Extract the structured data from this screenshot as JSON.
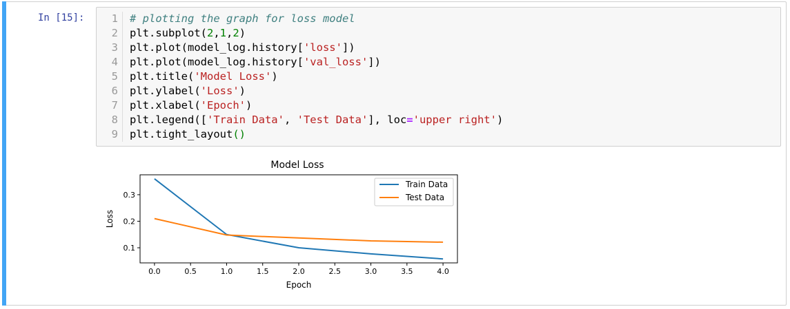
{
  "cell": {
    "prompt": "In [15]:"
  },
  "code": {
    "line_numbers": [
      "1",
      "2",
      "3",
      "4",
      "5",
      "6",
      "7",
      "8",
      "9"
    ]
  },
  "colors": {
    "prompt": "#303f9f",
    "cell_selected_bar": "#42a5f5",
    "comment": "#408080",
    "string": "#ba2121",
    "number": "#008000",
    "operator": "#aa22ff"
  },
  "chart_data": {
    "type": "line",
    "title": "Model Loss",
    "xlabel": "Epoch",
    "ylabel": "Loss",
    "x": [
      0,
      1,
      2,
      3,
      4
    ],
    "series": [
      {
        "name": "Train Data",
        "color": "#1f77b4",
        "values": [
          0.36,
          0.15,
          0.1,
          0.077,
          0.058
        ]
      },
      {
        "name": "Test Data",
        "color": "#ff7f0e",
        "values": [
          0.21,
          0.148,
          0.137,
          0.126,
          0.121
        ]
      }
    ],
    "xlim": [
      -0.2,
      4.2
    ],
    "ylim": [
      0.043,
      0.375
    ],
    "xticks": [
      "0.0",
      "0.5",
      "1.0",
      "1.5",
      "2.0",
      "2.5",
      "3.0",
      "3.5",
      "4.0"
    ],
    "xtick_values": [
      0,
      0.5,
      1,
      1.5,
      2,
      2.5,
      3,
      3.5,
      4
    ],
    "yticks": [
      "0.1",
      "0.2",
      "0.3"
    ],
    "ytick_values": [
      0.1,
      0.2,
      0.3
    ],
    "grid": false,
    "legend_loc": "upper right"
  }
}
